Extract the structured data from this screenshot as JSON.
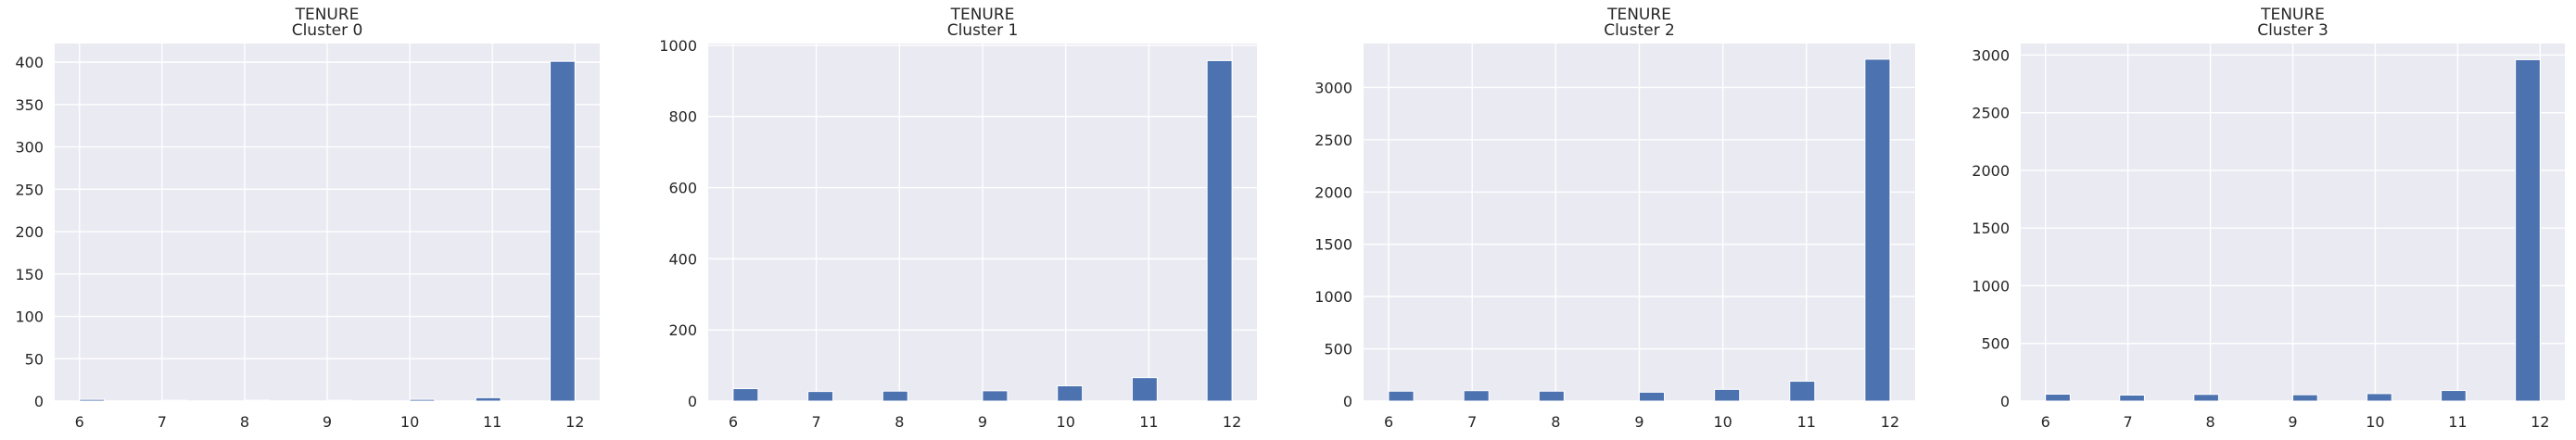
{
  "chart_data": [
    {
      "type": "bar",
      "title_lines": [
        "TENURE",
        "Cluster 0"
      ],
      "xlim": [
        5.7,
        12.3
      ],
      "xticks": [
        6,
        7,
        8,
        9,
        10,
        11,
        12
      ],
      "ylim": [
        0,
        422
      ],
      "yticks": [
        0,
        50,
        100,
        150,
        200,
        250,
        300,
        350,
        400
      ],
      "bins": [
        {
          "x0": 6.0,
          "x1": 6.3,
          "value": 2
        },
        {
          "x0": 7.0,
          "x1": 7.3,
          "value": 1
        },
        {
          "x0": 8.0,
          "x1": 8.3,
          "value": 1
        },
        {
          "x0": 9.0,
          "x1": 9.3,
          "value": 1
        },
        {
          "x0": 10.0,
          "x1": 10.3,
          "value": 2
        },
        {
          "x0": 10.8,
          "x1": 11.1,
          "value": 4
        },
        {
          "x0": 11.7,
          "x1": 12.0,
          "value": 401
        }
      ],
      "grid": true
    },
    {
      "type": "bar",
      "title_lines": [
        "TENURE",
        "Cluster 1"
      ],
      "xlim": [
        5.7,
        12.3
      ],
      "xticks": [
        6,
        7,
        8,
        9,
        10,
        11,
        12
      ],
      "ylim": [
        0,
        1005
      ],
      "yticks": [
        0,
        200,
        400,
        600,
        800,
        1000
      ],
      "bins": [
        {
          "x0": 6.0,
          "x1": 6.3,
          "value": 35
        },
        {
          "x0": 6.9,
          "x1": 7.2,
          "value": 27
        },
        {
          "x0": 7.8,
          "x1": 8.1,
          "value": 28
        },
        {
          "x0": 9.0,
          "x1": 9.3,
          "value": 29
        },
        {
          "x0": 9.9,
          "x1": 10.2,
          "value": 43
        },
        {
          "x0": 10.8,
          "x1": 11.1,
          "value": 66
        },
        {
          "x0": 11.7,
          "x1": 12.0,
          "value": 957
        }
      ],
      "grid": true
    },
    {
      "type": "bar",
      "title_lines": [
        "TENURE",
        "Cluster 2"
      ],
      "xlim": [
        5.7,
        12.3
      ],
      "xticks": [
        6,
        7,
        8,
        9,
        10,
        11,
        12
      ],
      "ylim": [
        0,
        3420
      ],
      "yticks": [
        0,
        500,
        1000,
        1500,
        2000,
        2500,
        3000
      ],
      "bins": [
        {
          "x0": 6.0,
          "x1": 6.3,
          "value": 95
        },
        {
          "x0": 6.9,
          "x1": 7.2,
          "value": 100
        },
        {
          "x0": 7.8,
          "x1": 8.1,
          "value": 95
        },
        {
          "x0": 9.0,
          "x1": 9.3,
          "value": 85
        },
        {
          "x0": 9.9,
          "x1": 10.2,
          "value": 112
        },
        {
          "x0": 10.8,
          "x1": 11.1,
          "value": 190
        },
        {
          "x0": 11.7,
          "x1": 12.0,
          "value": 3270
        }
      ],
      "grid": true
    },
    {
      "type": "bar",
      "title_lines": [
        "TENURE",
        "Cluster 3"
      ],
      "xlim": [
        5.7,
        12.3
      ],
      "xticks": [
        6,
        7,
        8,
        9,
        10,
        11,
        12
      ],
      "ylim": [
        0,
        3100
      ],
      "yticks": [
        0,
        500,
        1000,
        1500,
        2000,
        2500,
        3000
      ],
      "bins": [
        {
          "x0": 6.0,
          "x1": 6.3,
          "value": 60
        },
        {
          "x0": 6.9,
          "x1": 7.2,
          "value": 52
        },
        {
          "x0": 7.8,
          "x1": 8.1,
          "value": 58
        },
        {
          "x0": 9.0,
          "x1": 9.3,
          "value": 55
        },
        {
          "x0": 9.9,
          "x1": 10.2,
          "value": 65
        },
        {
          "x0": 10.8,
          "x1": 11.1,
          "value": 92
        },
        {
          "x0": 11.7,
          "x1": 12.0,
          "value": 2960
        }
      ],
      "grid": true
    }
  ]
}
